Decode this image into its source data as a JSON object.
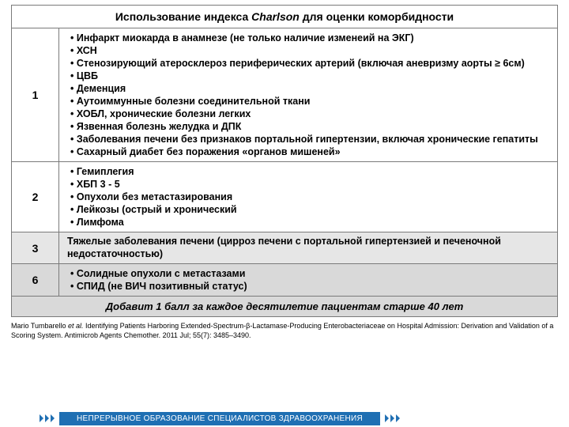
{
  "header_pre": "Использование индекса ",
  "header_em": "Charlson",
  "header_post": " для оценки коморбидности",
  "rows": [
    {
      "score": "1",
      "shade": "",
      "type": "list",
      "items": [
        "Инфаркт миокарда в анамнезе (не только наличие изменеий на ЭКГ)",
        "ХСН",
        "Стенозирующий атеросклероз  периферических артерий (включая аневризму аорты ≥ 6см)",
        "ЦВБ",
        "Деменция",
        "Аутоиммунные болезни соединительной ткани",
        "ХОБЛ, хронические болезни легких",
        "Язвенная болезнь желудка и ДПК",
        "Заболевания печени без признаков портальной гипертензии, включая хронические гепатиты",
        "Сахарный диабет без поражения «органов мишеней»"
      ]
    },
    {
      "score": "2",
      "shade": "",
      "type": "list",
      "items": [
        "Гемиплегия",
        "ХБП 3 - 5",
        "Опухоли без метастазирования",
        "Лейкозы (острый и хронический",
        "Лимфома"
      ]
    },
    {
      "score": "3",
      "shade": "shade1",
      "type": "plain",
      "text": "Тяжелые заболевания печени (цирроз печени с портальной гипертензией и печеночной недостаточностью)"
    },
    {
      "score": "6",
      "shade": "shade2",
      "type": "list",
      "items": [
        "Солидные опухоли с метастазами",
        "СПИД (не ВИЧ позитивный статус)"
      ]
    }
  ],
  "footer_row": "Добавит 1 балл за каждое десятилетие пациентам старше 40 лет",
  "citation_pre": "Mario Tumbarello ",
  "citation_em": "et al.",
  "citation_post": " Identifying Patients Harboring Extended-Spectrum-β-Lactamase-Producing Enterobacteriaceae on Hospital Admission: Derivation and Validation of a Scoring System.  Antimicrob Agents Chemother. 2011 Jul; 55(7): 3485–3490.",
  "banner": "НЕПРЕРЫВНОЕ ОБРАЗОВАНИЕ СПЕЦИАЛИСТОВ ЗДРАВООХРАНЕНИЯ",
  "colors": {
    "border": "#7a7a7a",
    "shade1": "#e6e6e6",
    "shade2": "#d9d9d9",
    "banner": "#1f6fb3"
  }
}
